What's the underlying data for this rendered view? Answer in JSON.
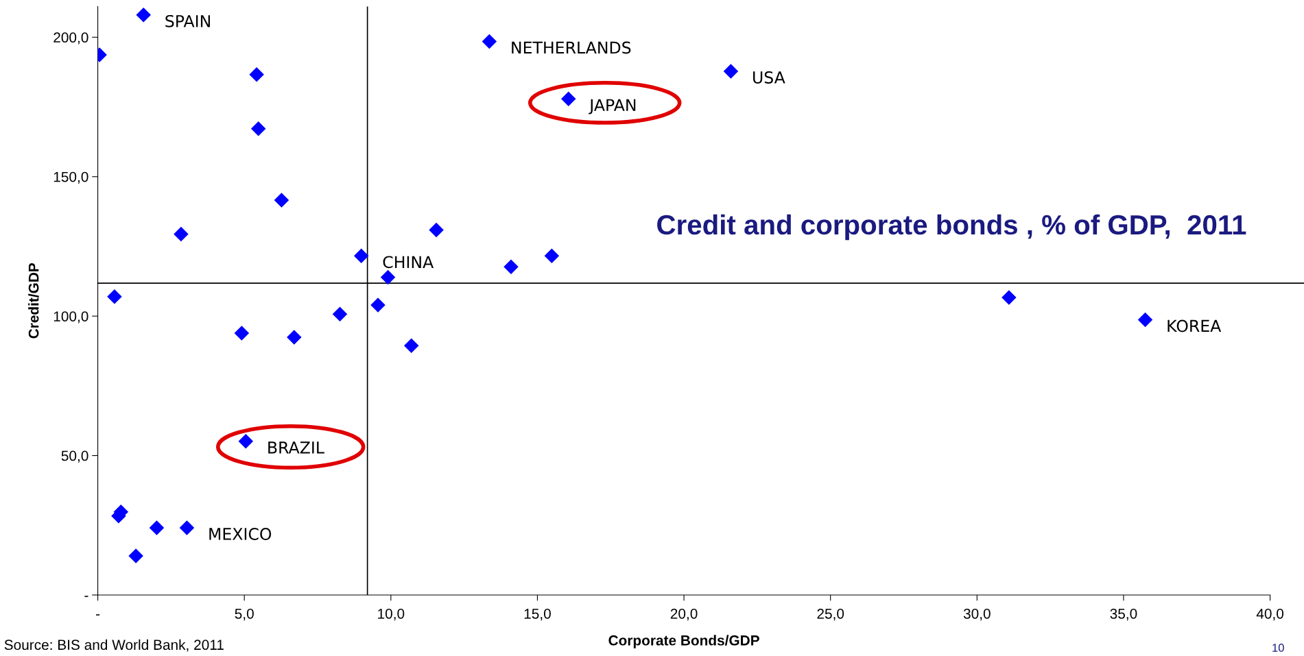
{
  "chart_data": {
    "type": "scatter",
    "title": "Credit and corporate bonds , % of GDP,  2011",
    "xlabel": "Corporate Bonds/GDP",
    "ylabel": "Credit/GDP",
    "x": [
      1.56,
      0.06,
      13.36,
      21.6,
      16.06,
      5.42,
      5.48,
      6.27,
      2.84,
      8.99,
      11.55,
      14.1,
      15.49,
      9.9,
      0.57,
      31.09,
      35.74,
      8.26,
      9.56,
      4.91,
      6.7,
      10.7,
      5.05,
      0.79,
      0.71,
      2.01,
      3.04,
      1.3
    ],
    "values": [
      208.0,
      193.7,
      198.5,
      187.8,
      177.9,
      186.6,
      167.2,
      141.6,
      129.4,
      121.6,
      130.9,
      117.7,
      121.6,
      113.9,
      107.0,
      106.7,
      98.7,
      100.7,
      104.0,
      93.9,
      92.4,
      89.4,
      55.1,
      29.8,
      28.3,
      24.1,
      24.1,
      14.0
    ],
    "color": "#0000ff",
    "marker": "diamond",
    "xlim": [
      0,
      40
    ],
    "ylim": [
      0,
      211
    ],
    "xticks": [
      {
        "value": 0,
        "label": "-"
      },
      {
        "value": 5,
        "label": "5,0"
      },
      {
        "value": 10,
        "label": "10,0"
      },
      {
        "value": 15,
        "label": "15,0"
      },
      {
        "value": 20,
        "label": "20,0"
      },
      {
        "value": 25,
        "label": "25,0"
      },
      {
        "value": 30,
        "label": "30,0"
      },
      {
        "value": 35,
        "label": "35,0"
      },
      {
        "value": 40,
        "label": "40,0"
      }
    ],
    "yticks": [
      {
        "value": 0,
        "label": "-"
      },
      {
        "value": 50,
        "label": "50,0"
      },
      {
        "value": 100,
        "label": "100,0"
      },
      {
        "value": 150,
        "label": "150,0"
      },
      {
        "value": 200,
        "label": "200,0"
      }
    ],
    "ref_lines": [
      {
        "axis": "x",
        "value": 9.2,
        "color": "#000000"
      },
      {
        "axis": "y",
        "value": 111.8,
        "color": "#000000"
      }
    ],
    "annotations": [
      {
        "text": "SPAIN",
        "x": 1.56,
        "y": 208.0
      },
      {
        "text": "NETHERLANDS",
        "x": 13.36,
        "y": 198.5
      },
      {
        "text": "USA",
        "x": 21.6,
        "y": 187.8
      },
      {
        "text": "JAPAN",
        "x": 16.06,
        "y": 177.9
      },
      {
        "text": "CHINA",
        "x": 8.99,
        "y": 121.6
      },
      {
        "text": "KOREA",
        "x": 35.74,
        "y": 98.7
      },
      {
        "text": "BRAZIL",
        "x": 5.05,
        "y": 55.1
      },
      {
        "text": "MEXICO",
        "x": 3.04,
        "y": 24.1
      },
      "Source: BIS and World Bank, 2011",
      "10"
    ],
    "grid": false,
    "legend": false
  }
}
